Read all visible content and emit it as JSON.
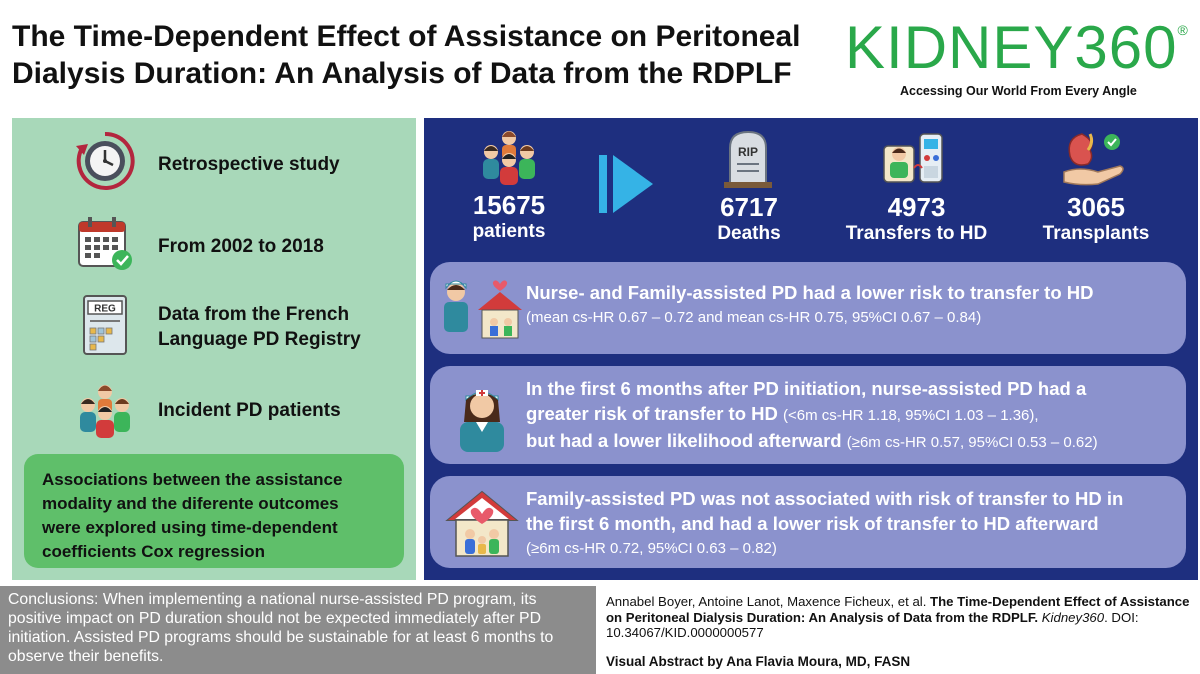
{
  "title_line1": "The Time-Dependent Effect of Assistance on Peritoneal",
  "title_line2": "Dialysis Duration: An Analysis of Data from the RDPLF",
  "brand": {
    "name": "KIDNEY360",
    "reg": "®",
    "tagline": "Accessing Our World From Every Angle",
    "color": "#2aa84a"
  },
  "left": {
    "items": [
      {
        "label": "Retrospective study",
        "icon": "clock-icon"
      },
      {
        "label": "From 2002 to 2018",
        "icon": "calendar-icon"
      },
      {
        "label_line1": "Data from the French",
        "label_line2": "Language PD Registry",
        "badge": "REG",
        "icon": "registry-document-icon"
      },
      {
        "label": "Incident PD patients",
        "icon": "patients-group-icon"
      }
    ],
    "assoc_lines": [
      "Associations between the assistance",
      "modality and the diferente outcomes",
      "were explored using time-dependent",
      "coefficients Cox regression"
    ]
  },
  "stats": {
    "patients": {
      "num": "15675",
      "label": "patients"
    },
    "deaths": {
      "num": "6717",
      "label": "Deaths",
      "tomb_text": "RIP"
    },
    "hd": {
      "num": "4973",
      "label": "Transfers to HD"
    },
    "transplants": {
      "num": "3065",
      "label": "Transplants"
    }
  },
  "findings": [
    {
      "line1": "Nurse- and Family-assisted PD had a lower risk to transfer to HD",
      "small": "(mean cs-HR 0.67 – 0.72 and mean cs-HR 0.75, 95%CI 0.67 – 0.84)"
    },
    {
      "line1": "In the first 6 months after PD initiation, nurse-assisted PD had a",
      "line2_bold": "greater risk of transfer to HD ",
      "line2_small": "(<6m cs-HR 1.18, 95%CI 1.03 – 1.36),",
      "line3_bold": "but had a lower likelihood afterward ",
      "line3_small": "(≥6m cs-HR 0.57, 95%CI 0.53 – 0.62)"
    },
    {
      "line1": "Family-assisted PD was not associated with risk of transfer to HD in",
      "line2": "the first 6 month, and had a lower risk of transfer to HD afterward",
      "small": "(≥6m cs-HR 0.72, 95%CI 0.63 – 0.82)"
    }
  ],
  "conclusions": "Conclusions: When implementing a national nurse-assisted PD program, its positive impact on PD duration should not be expected immediately after PD initiation. Assisted PD programs should be sustainable for at least 6 months to observe their benefits.",
  "citation": {
    "authors": "Annabel Boyer, Antoine Lanot, Maxence Ficheux, et al. ",
    "title": "The Time-Dependent Effect of Assistance on Peritoneal Dialysis Duration: An Analysis of Data from the RDPLF.",
    "journal": "Kidney360",
    "doi": ". DOI: 10.34067/KID.0000000577"
  },
  "credit": "Visual Abstract by Ana Flavia Moura, MD, FASN"
}
